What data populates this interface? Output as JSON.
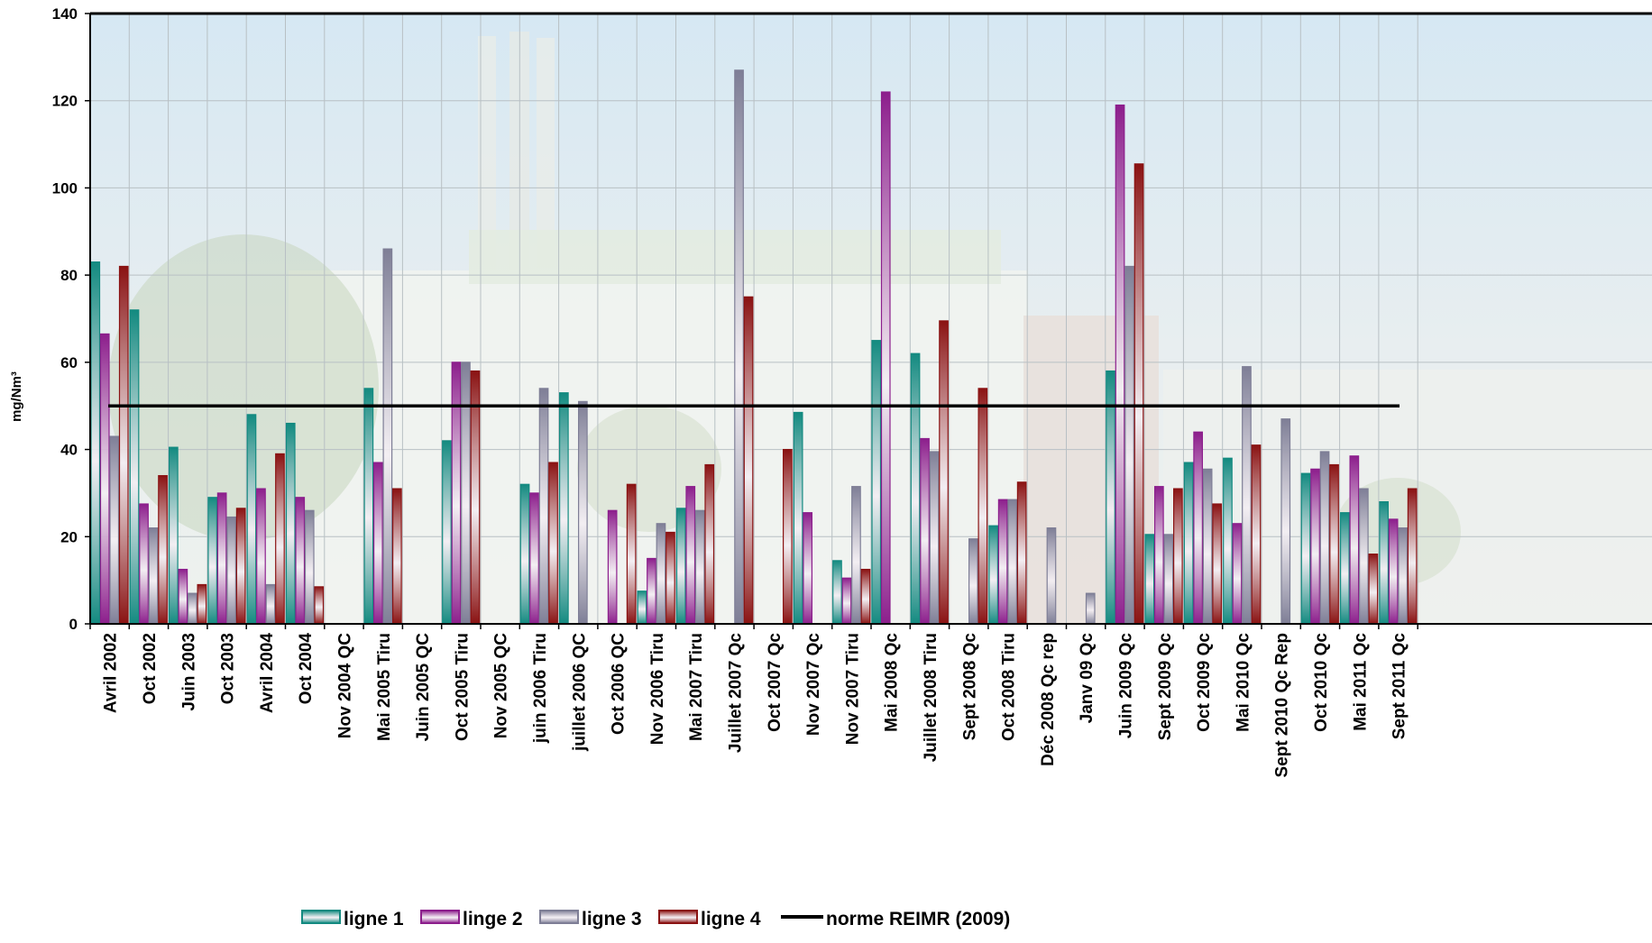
{
  "chart_data": {
    "type": "bar",
    "ylabel": "mg/Nm³",
    "ylim": [
      0,
      140
    ],
    "yticks": [
      0,
      20,
      40,
      60,
      80,
      100,
      120,
      140
    ],
    "grid": true,
    "legend_position": "bottom",
    "categories": [
      "Avril 2002",
      "Oct 2002",
      "Juin 2003",
      "Oct 2003",
      "Avril 2004",
      "Oct 2004",
      "Nov 2004 QC",
      "Mai 2005 Tiru",
      "Juin 2005 QC",
      "Oct 2005 Tiru",
      "Nov 2005 QC",
      "juin 2006 Tiru",
      "juillet 2006 QC",
      "Oct 2006 QC",
      "Nov 2006 Tiru",
      "Mai 2007 Tiru",
      "Juillet 2007 Qc",
      "Oct 2007 Qc",
      "Nov 2007 Qc",
      "Nov 2007 Tiru",
      "Mai 2008 Qc",
      "Juillet 2008 Tiru",
      "Sept 2008 Qc",
      "Oct 2008 Tiru",
      "Déc 2008 Qc rep",
      "Janv 09 Qc",
      "Juin 2009 Qc",
      "Sept 2009 Qc",
      "Oct 2009 Qc",
      "Mai 2010 Qc",
      "Sept 2010 Qc Rep",
      "Oct 2010 Qc",
      "Mai 2011 Qc",
      "Sept 2011 Qc"
    ],
    "series": [
      {
        "name": "ligne 1",
        "color": "#138a80",
        "values": [
          83,
          72,
          40.5,
          29,
          48,
          46,
          0,
          54,
          0,
          42,
          0,
          32,
          53,
          0,
          7.5,
          26.5,
          0,
          0,
          48.5,
          14.5,
          65,
          62,
          0,
          22.5,
          0,
          0,
          58,
          20.5,
          37,
          38,
          0,
          34.5,
          25.5,
          28
        ]
      },
      {
        "name": "linge 2",
        "color": "#8c1e8c",
        "values": [
          66.5,
          27.5,
          12.5,
          30,
          31,
          29,
          0,
          37,
          0,
          60,
          0,
          30,
          0,
          26,
          15,
          31.5,
          0,
          0,
          25.5,
          10.5,
          122,
          42.5,
          0,
          28.5,
          0,
          0,
          119,
          31.5,
          44,
          23,
          0,
          35.5,
          38.5,
          24
        ]
      },
      {
        "name": "ligne 3",
        "color": "#7e7e96",
        "values": [
          43,
          22,
          7,
          24.5,
          9,
          26,
          0,
          86,
          0,
          60,
          0,
          54,
          51,
          0,
          23,
          26,
          127,
          0,
          0,
          31.5,
          0,
          39.5,
          19.5,
          28.5,
          22,
          7,
          82,
          20.5,
          35.5,
          59,
          47,
          39.5,
          31,
          22
        ]
      },
      {
        "name": "ligne 4",
        "color": "#8a1212",
        "values": [
          82,
          34,
          9,
          26.5,
          39,
          8.5,
          0,
          31,
          0,
          58,
          0,
          37,
          0,
          32,
          21,
          36.5,
          75,
          40,
          0,
          12.5,
          0,
          69.5,
          54,
          32.5,
          0,
          0,
          105.5,
          31,
          27.5,
          41,
          0,
          36.5,
          16,
          31
        ]
      }
    ],
    "reference_line": {
      "name": "norme REIMR (2009)",
      "value": 50,
      "color": "#000000"
    }
  }
}
